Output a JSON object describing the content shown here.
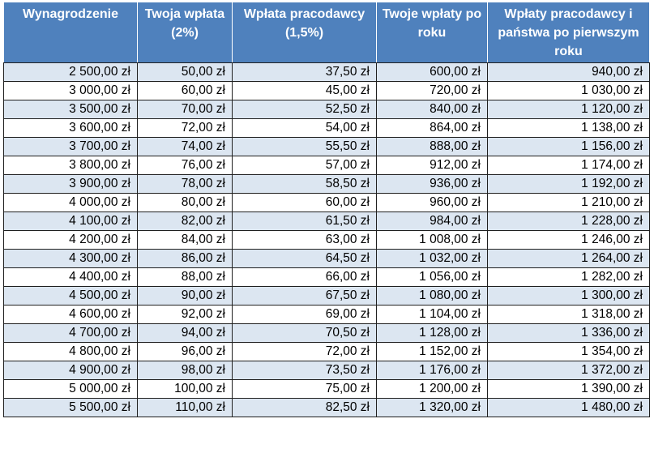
{
  "headers": [
    "Wynagrodzenie",
    "Twoja wpłata (2%)",
    "Wpłata pracodawcy (1,5%)",
    "Twoje wpłaty po roku",
    "Wpłaty pracodawcy i państwa po pierwszym roku"
  ],
  "rows": [
    [
      "2 500,00 zł",
      "50,00 zł",
      "37,50 zł",
      "600,00 zł",
      "940,00 zł"
    ],
    [
      "3 000,00 zł",
      "60,00 zł",
      "45,00 zł",
      "720,00 zł",
      "1 030,00 zł"
    ],
    [
      "3 500,00 zł",
      "70,00 zł",
      "52,50 zł",
      "840,00 zł",
      "1 120,00 zł"
    ],
    [
      "3 600,00 zł",
      "72,00 zł",
      "54,00 zł",
      "864,00 zł",
      "1 138,00 zł"
    ],
    [
      "3 700,00 zł",
      "74,00 zł",
      "55,50 zł",
      "888,00 zł",
      "1 156,00 zł"
    ],
    [
      "3 800,00 zł",
      "76,00 zł",
      "57,00 zł",
      "912,00 zł",
      "1 174,00 zł"
    ],
    [
      "3 900,00 zł",
      "78,00 zł",
      "58,50 zł",
      "936,00 zł",
      "1 192,00 zł"
    ],
    [
      "4 000,00 zł",
      "80,00 zł",
      "60,00 zł",
      "960,00 zł",
      "1 210,00 zł"
    ],
    [
      "4 100,00 zł",
      "82,00 zł",
      "61,50 zł",
      "984,00 zł",
      "1 228,00 zł"
    ],
    [
      "4 200,00 zł",
      "84,00 zł",
      "63,00 zł",
      "1 008,00 zł",
      "1 246,00 zł"
    ],
    [
      "4 300,00 zł",
      "86,00 zł",
      "64,50 zł",
      "1 032,00 zł",
      "1 264,00 zł"
    ],
    [
      "4 400,00 zł",
      "88,00 zł",
      "66,00 zł",
      "1 056,00 zł",
      "1 282,00 zł"
    ],
    [
      "4 500,00 zł",
      "90,00 zł",
      "67,50 zł",
      "1 080,00 zł",
      "1 300,00 zł"
    ],
    [
      "4 600,00 zł",
      "92,00 zł",
      "69,00 zł",
      "1 104,00 zł",
      "1 318,00 zł"
    ],
    [
      "4 700,00 zł",
      "94,00 zł",
      "70,50 zł",
      "1 128,00 zł",
      "1 336,00 zł"
    ],
    [
      "4 800,00 zł",
      "96,00 zł",
      "72,00 zł",
      "1 152,00 zł",
      "1 354,00 zł"
    ],
    [
      "4 900,00 zł",
      "98,00 zł",
      "73,50 zł",
      "1 176,00 zł",
      "1 372,00 zł"
    ],
    [
      "5 000,00 zł",
      "100,00 zł",
      "75,00 zł",
      "1 200,00 zł",
      "1 390,00 zł"
    ],
    [
      "5 500,00 zł",
      "110,00 zł",
      "82,50 zł",
      "1 320,00 zł",
      "1 480,00 zł"
    ]
  ],
  "colors": {
    "header_bg": "#4f81bd",
    "header_text": "#ffffff",
    "row_band": "#dce6f1",
    "row_plain": "#ffffff",
    "grid": "#1f1f1f"
  }
}
